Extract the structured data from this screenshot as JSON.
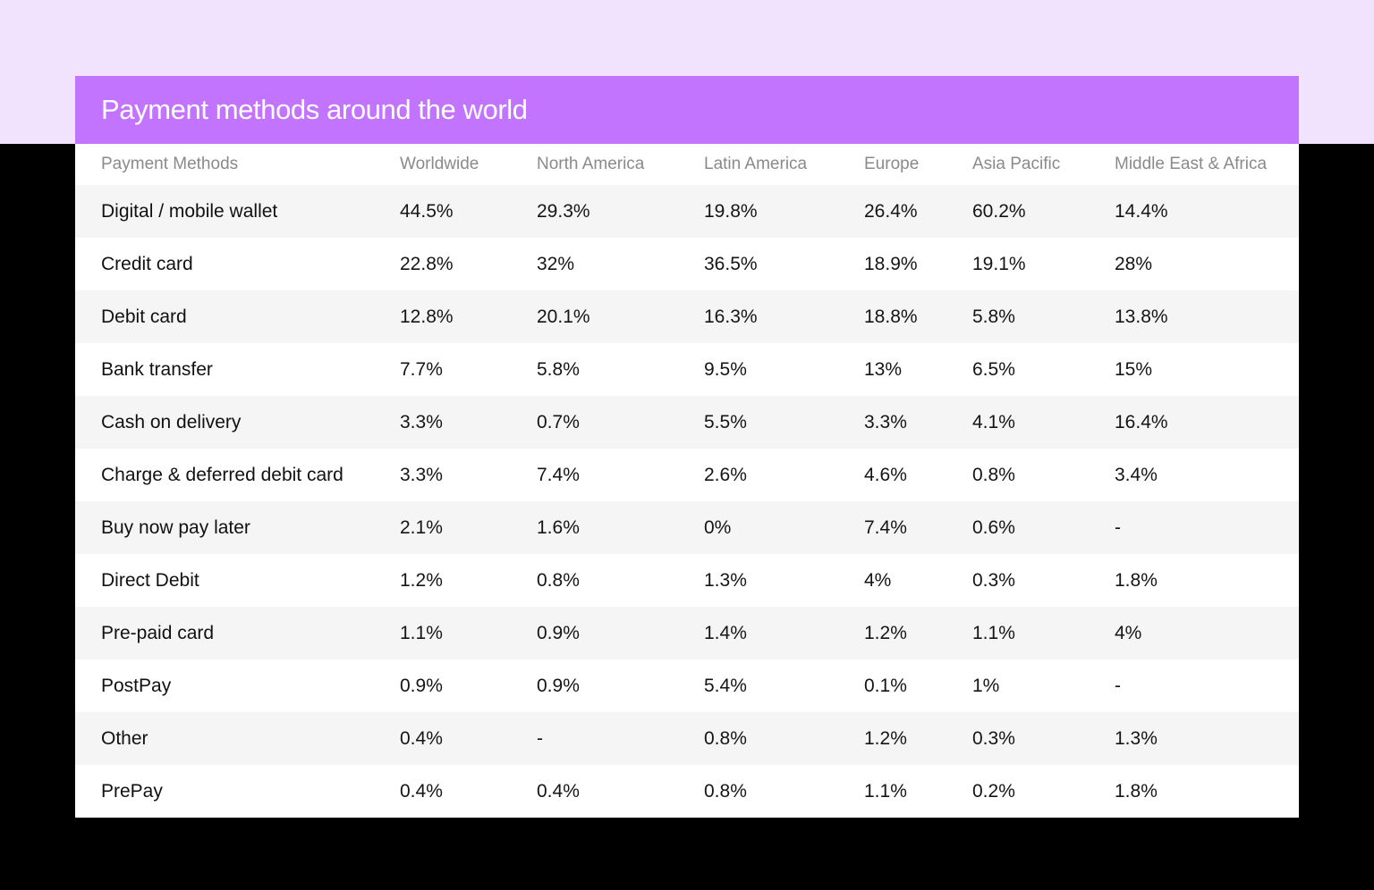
{
  "chart_data": {
    "type": "table",
    "title": "Payment methods around the world",
    "columns": [
      "Payment Methods",
      "Worldwide",
      "North America",
      "Latin America",
      "Europe",
      "Asia Pacific",
      "Middle East & Africa"
    ],
    "rows": [
      {
        "method": "Digital / mobile wallet",
        "values": [
          "44.5%",
          "29.3%",
          "19.8%",
          "26.4%",
          "60.2%",
          "14.4%"
        ]
      },
      {
        "method": "Credit card",
        "values": [
          "22.8%",
          "32%",
          "36.5%",
          "18.9%",
          "19.1%",
          "28%"
        ]
      },
      {
        "method": "Debit card",
        "values": [
          "12.8%",
          "20.1%",
          "16.3%",
          "18.8%",
          "5.8%",
          "13.8%"
        ]
      },
      {
        "method": "Bank transfer",
        "values": [
          "7.7%",
          "5.8%",
          "9.5%",
          "13%",
          "6.5%",
          "15%"
        ]
      },
      {
        "method": "Cash on delivery",
        "values": [
          "3.3%",
          "0.7%",
          "5.5%",
          "3.3%",
          "4.1%",
          "16.4%"
        ]
      },
      {
        "method": "Charge & deferred debit card",
        "values": [
          "3.3%",
          "7.4%",
          "2.6%",
          "4.6%",
          "0.8%",
          "3.4%"
        ]
      },
      {
        "method": "Buy now pay later",
        "values": [
          "2.1%",
          "1.6%",
          "0%",
          "7.4%",
          "0.6%",
          "-"
        ]
      },
      {
        "method": "Direct Debit",
        "values": [
          "1.2%",
          "0.8%",
          "1.3%",
          "4%",
          "0.3%",
          "1.8%"
        ]
      },
      {
        "method": "Pre-paid card",
        "values": [
          "1.1%",
          "0.9%",
          "1.4%",
          "1.2%",
          "1.1%",
          "4%"
        ]
      },
      {
        "method": "PostPay",
        "values": [
          "0.9%",
          "0.9%",
          "5.4%",
          "0.1%",
          "1%",
          "-"
        ]
      },
      {
        "method": "Other",
        "values": [
          "0.4%",
          "-",
          "0.8%",
          "1.2%",
          "0.3%",
          "1.3%"
        ]
      },
      {
        "method": "PrePay",
        "values": [
          "0.4%",
          "0.4%",
          "0.8%",
          "1.1%",
          "0.2%",
          "1.8%"
        ]
      }
    ]
  },
  "colors": {
    "band": "#f1e2fe",
    "title_bar": "#c274fe",
    "background": "#000000",
    "row_alt": "#f5f5f5"
  }
}
